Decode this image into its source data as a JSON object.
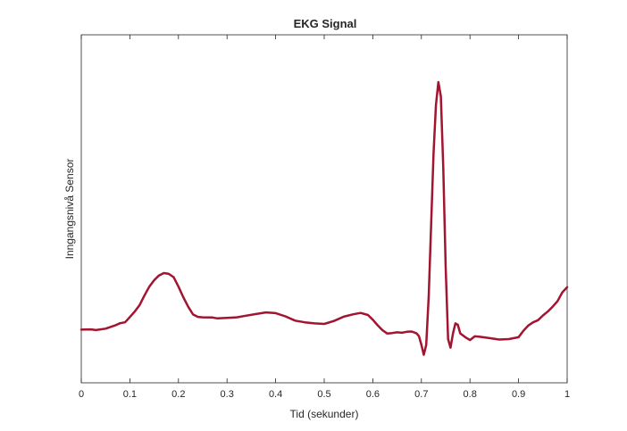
{
  "chart_data": {
    "type": "line",
    "title": "EKG Signal",
    "xlabel": "Tid (sekunder)",
    "ylabel": "Inngangsnivå Sensor",
    "xlim": [
      0,
      1
    ],
    "ylim": [
      0,
      1
    ],
    "grid": false,
    "y_tick_labels_shown": false,
    "x_ticks": [
      0,
      0.1,
      0.2,
      0.3,
      0.4,
      0.5,
      0.6,
      0.7,
      0.8,
      0.9,
      1
    ],
    "x_tick_labels": [
      "0",
      "0.1",
      "0.2",
      "0.3",
      "0.4",
      "0.5",
      "0.6",
      "0.7",
      "0.8",
      "0.9",
      "1"
    ],
    "series": [
      {
        "color": "#A2142F",
        "x": [
          0,
          0.02,
          0.03,
          0.05,
          0.07,
          0.08,
          0.09,
          0.1,
          0.11,
          0.12,
          0.13,
          0.14,
          0.15,
          0.16,
          0.17,
          0.18,
          0.19,
          0.2,
          0.21,
          0.22,
          0.23,
          0.24,
          0.25,
          0.27,
          0.28,
          0.3,
          0.32,
          0.34,
          0.36,
          0.38,
          0.4,
          0.42,
          0.44,
          0.46,
          0.48,
          0.5,
          0.52,
          0.54,
          0.56,
          0.575,
          0.59,
          0.6,
          0.61,
          0.62,
          0.63,
          0.64,
          0.65,
          0.66,
          0.67,
          0.68,
          0.69,
          0.695,
          0.7,
          0.705,
          0.71,
          0.715,
          0.72,
          0.725,
          0.73,
          0.735,
          0.74,
          0.745,
          0.75,
          0.755,
          0.76,
          0.765,
          0.77,
          0.775,
          0.78,
          0.79,
          0.8,
          0.81,
          0.82,
          0.84,
          0.86,
          0.88,
          0.9,
          0.91,
          0.92,
          0.93,
          0.94,
          0.95,
          0.96,
          0.97,
          0.98,
          0.99,
          1.0
        ],
        "y": [
          0.133,
          0.134,
          0.135,
          0.137,
          0.145,
          0.152,
          0.158,
          0.18,
          0.2,
          0.22,
          0.25,
          0.28,
          0.305,
          0.325,
          0.335,
          0.33,
          0.315,
          0.28,
          0.245,
          0.215,
          0.19,
          0.18,
          0.175,
          0.172,
          0.17,
          0.175,
          0.18,
          0.185,
          0.187,
          0.19,
          0.188,
          0.18,
          0.168,
          0.162,
          0.155,
          0.15,
          0.16,
          0.178,
          0.19,
          0.195,
          0.185,
          0.165,
          0.145,
          0.13,
          0.122,
          0.125,
          0.125,
          0.12,
          0.122,
          0.125,
          0.12,
          0.11,
          0.08,
          0.045,
          0.08,
          0.25,
          0.5,
          0.75,
          0.92,
          1.0,
          0.95,
          0.7,
          0.35,
          0.1,
          0.07,
          0.12,
          0.155,
          0.15,
          0.12,
          0.11,
          0.1,
          0.11,
          0.105,
          0.1,
          0.098,
          0.103,
          0.11,
          0.13,
          0.145,
          0.155,
          0.165,
          0.185,
          0.2,
          0.215,
          0.23,
          0.26,
          0.28
        ]
      }
    ]
  }
}
